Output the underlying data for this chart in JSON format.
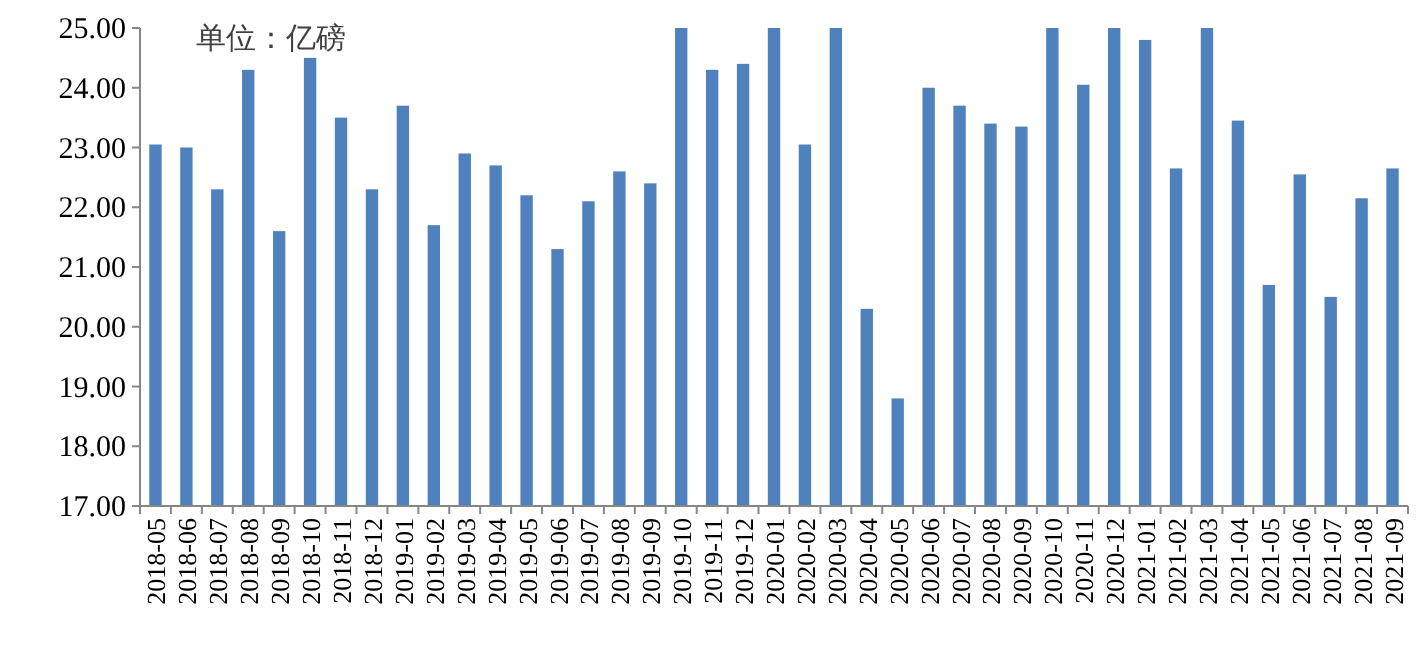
{
  "chart_data": {
    "type": "bar",
    "annotations": [
      "单位：亿磅"
    ],
    "categories": [
      "2018-05",
      "2018-06",
      "2018-07",
      "2018-08",
      "2018-09",
      "2018-10",
      "2018-11",
      "2018-12",
      "2019-01",
      "2019-02",
      "2019-03",
      "2019-04",
      "2019-05",
      "2019-06",
      "2019-07",
      "2019-08",
      "2019-09",
      "2019-10",
      "2019-11",
      "2019-12",
      "2020-01",
      "2020-02",
      "2020-03",
      "2020-04",
      "2020-05",
      "2020-06",
      "2020-07",
      "2020-08",
      "2020-09",
      "2020-10",
      "2020-11",
      "2020-12",
      "2021-01",
      "2021-02",
      "2021-03",
      "2021-04",
      "2021-05",
      "2021-06",
      "2021-07",
      "2021-08",
      "2021-09"
    ],
    "values": [
      23.05,
      23.0,
      22.3,
      24.3,
      21.6,
      24.5,
      23.5,
      22.3,
      23.7,
      21.7,
      22.9,
      22.7,
      22.2,
      21.3,
      22.1,
      22.6,
      22.4,
      25.0,
      24.3,
      24.4,
      25.0,
      23.05,
      25.0,
      20.3,
      18.8,
      24.0,
      23.7,
      23.4,
      23.35,
      25.0,
      24.05,
      25.0,
      24.8,
      22.65,
      25.0,
      23.45,
      20.7,
      22.55,
      20.5,
      22.15,
      22.65
    ],
    "color": "#4f81bd",
    "ylim": [
      17,
      25
    ],
    "yticks": [
      {
        "value": 17,
        "label": "17.00"
      },
      {
        "value": 18,
        "label": "18.00"
      },
      {
        "value": 19,
        "label": "19.00"
      },
      {
        "value": 20,
        "label": "20.00"
      },
      {
        "value": 21,
        "label": "21.00"
      },
      {
        "value": 22,
        "label": "22.00"
      },
      {
        "value": 23,
        "label": "23.00"
      },
      {
        "value": 24,
        "label": "24.00"
      },
      {
        "value": 25,
        "label": "25.00"
      }
    ],
    "grid": false
  }
}
